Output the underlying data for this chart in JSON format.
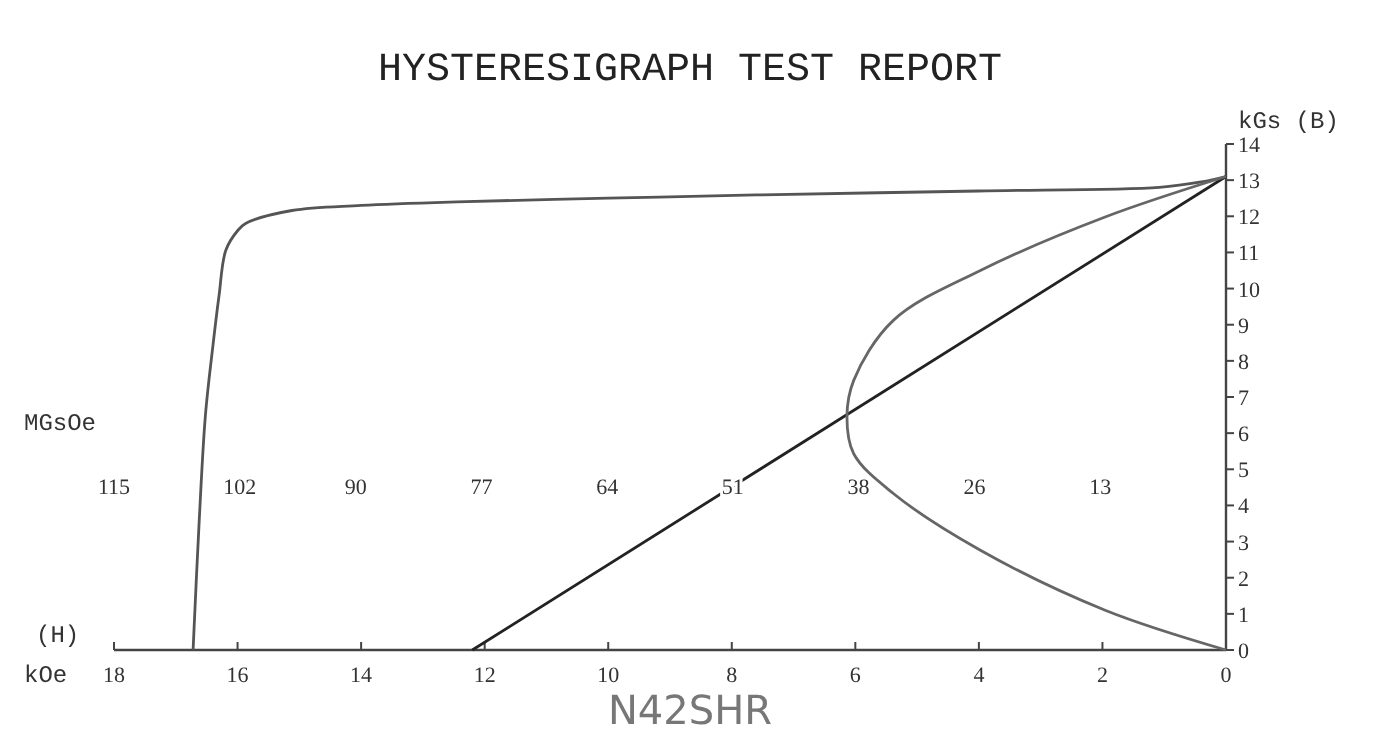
{
  "chart_data": {
    "type": "line",
    "title": "HYSTERESIGRAPH TEST REPORT",
    "xlabel": "kOe",
    "ylabel": "kGs (B)",
    "x2label": "MGsOe",
    "annotations": [
      "(H)",
      "N42SHR"
    ],
    "xlim": [
      18,
      0
    ],
    "xticks": [
      18,
      16,
      14,
      12,
      10,
      8,
      6,
      4,
      2,
      0
    ],
    "ylim": [
      0,
      14
    ],
    "yticks": [
      0,
      1,
      2,
      3,
      4,
      5,
      6,
      7,
      8,
      9,
      10,
      11,
      12,
      13,
      14
    ],
    "x2lim": [
      115,
      0
    ],
    "x2ticks": [
      115,
      102,
      90,
      77,
      64,
      51,
      38,
      26,
      13
    ],
    "grid": false,
    "marker": "none",
    "line_style": "solid",
    "series": [
      {
        "color": "#555555",
        "x": [
          16.72,
          16.62,
          16.52,
          16.4,
          16.3,
          16.19,
          16.0,
          15.87,
          15.12,
          14,
          12.45,
          10,
          7.6,
          4,
          1.08,
          0.4,
          0
        ],
        "values": [
          0,
          3.6,
          6.5,
          8.4,
          9.8,
          11.06,
          11.6,
          11.8,
          12.16,
          12.3,
          12.4,
          12.5,
          12.59,
          12.7,
          12.8,
          12.95,
          13.1
        ]
      },
      {
        "color": "#222222",
        "x": [
          12.2,
          0
        ],
        "values": [
          0,
          13.1
        ]
      },
      {
        "color": "#666666",
        "axis": "x2",
        "x": [
          0,
          12.5,
          25.4,
          34.4,
          38.5,
          39.2,
          38.5,
          34.4,
          25.4,
          12.5,
          0
        ],
        "values": [
          0,
          1.1,
          2.76,
          4.33,
          5.43,
          6.45,
          7.46,
          9.12,
          10.5,
          11.98,
          13.1
        ]
      }
    ]
  }
}
